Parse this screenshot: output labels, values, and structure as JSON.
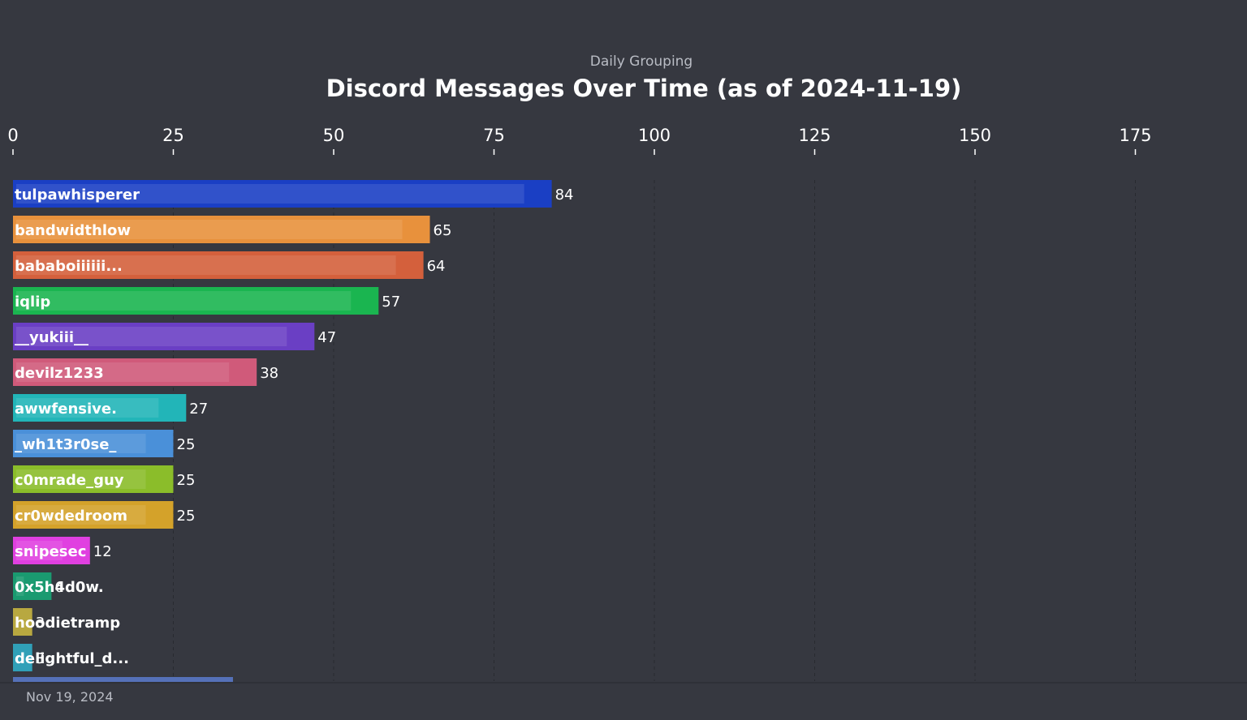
{
  "chart_data": {
    "type": "bar",
    "orientation": "horizontal",
    "subtitle": "Daily Grouping",
    "title": "Discord Messages Over Time (as of 2024-11-19)",
    "x_ticks": [
      0,
      25,
      50,
      75,
      100,
      125,
      150,
      175
    ],
    "xlim": [
      0,
      192
    ],
    "axis_position": "top",
    "grid": true,
    "date_label": "Nov 19, 2024",
    "categories": [
      "tulpawhisperer",
      "bandwidthlow",
      "bababoiiiiii...",
      "iqlip",
      "__yukiii__",
      "devilz1233",
      "awwfensive.",
      "_wh1t3r0se_",
      "c0mrade_guy",
      "cr0wdedroom",
      "snipesec",
      "0x5h4d0w.",
      "hoodietramp",
      "delightful_d..."
    ],
    "values": [
      84,
      65,
      64,
      57,
      47,
      38,
      27,
      25,
      25,
      25,
      12,
      6,
      3,
      3
    ],
    "value_labels": [
      "84",
      "65",
      "64",
      "57",
      "47",
      "38",
      "27",
      "25",
      "25",
      "25",
      "12",
      "6",
      "3",
      "3"
    ],
    "colors": [
      "#1a3fc4",
      "#e8913c",
      "#d4603c",
      "#1ab550",
      "#6a3fc4",
      "#d05a7a",
      "#22b5b8",
      "#4a90d9",
      "#8bbd2a",
      "#d4a22a",
      "#e040e0",
      "#1a9a70",
      "#b8a840",
      "#30a0b8"
    ],
    "partial_bar": {
      "value": 34.3,
      "color": "#5571b8"
    }
  }
}
